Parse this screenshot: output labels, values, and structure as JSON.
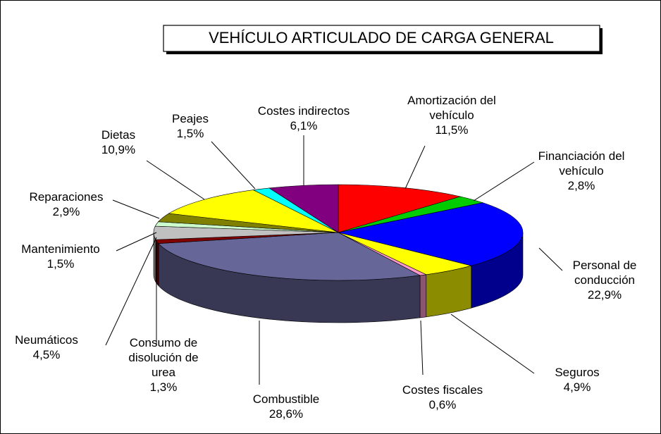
{
  "chart_data": {
    "type": "pie3d",
    "title": "VEHÍCULO ARTICULADO DE CARGA GENERAL",
    "categories": [
      "Amortización del\nvehículo",
      "Financiación del\nvehículo",
      "Personal de\nconducción",
      "Seguros",
      "Costes fiscales",
      "Combustible",
      "Consumo de\ndisolución de\nurea",
      "Neumáticos",
      "Mantenimiento",
      "Reparaciones",
      "Dietas",
      "Peajes",
      "Costes indirectos"
    ],
    "values": [
      11.5,
      2.8,
      22.9,
      4.9,
      0.6,
      28.6,
      1.3,
      4.5,
      1.5,
      2.9,
      10.9,
      1.5,
      6.1
    ],
    "value_labels": [
      "11,5%",
      "2,8%",
      "22,9%",
      "4,9%",
      "0,6%",
      "28,6%",
      "1,3%",
      "4,5%",
      "1,5%",
      "2,9%",
      "10,9%",
      "1,5%",
      "6,1%"
    ],
    "colors": [
      "#ff0000",
      "#00cc00",
      "#0000ff",
      "#ffff00",
      "#ff99cc",
      "#666699",
      "#800000",
      "#c0c0c0",
      "#ccffcc",
      "#808000",
      "#ffff00",
      "#00ffff",
      "#800080"
    ]
  }
}
